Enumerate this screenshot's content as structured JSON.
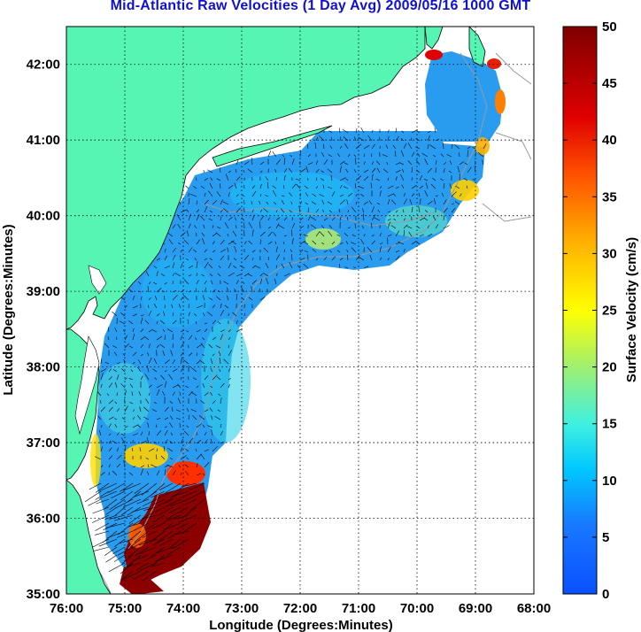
{
  "title": "Mid-Atlantic Raw Velocities (1 Day Avg) 2009/05/16 1000 GMT",
  "x_axis": {
    "label": "Longitude (Degrees:Minutes)",
    "ticks": [
      "76:00",
      "75:00",
      "74:00",
      "73:00",
      "72:00",
      "71:00",
      "70:00",
      "69:00",
      "68:00"
    ]
  },
  "y_axis": {
    "label": "Latitude (Degrees:Minutes)",
    "ticks": [
      "35:00",
      "36:00",
      "37:00",
      "38:00",
      "39:00",
      "40:00",
      "41:00",
      "42:00"
    ]
  },
  "colorbar": {
    "label": "Surface Velocity (cm/s)",
    "ticks": [
      "0",
      "5",
      "10",
      "15",
      "20",
      "25",
      "30",
      "35",
      "40",
      "45",
      "50"
    ],
    "min": 0,
    "max": 50
  },
  "map_extent": {
    "lon_min": -76,
    "lon_max": -68,
    "lat_min": 35,
    "lat_max": 42.5
  },
  "colors": {
    "land": "#57f5b4",
    "ocean_low": "#2a8cf0",
    "ocean_mid": "#1ec8f0",
    "ocean_high": "#800000",
    "title": "#1010d0",
    "grid": "#000000",
    "coast": "#000000",
    "bathymetry": "#9a9a9a"
  },
  "features": [
    "land-mask",
    "coverage-field",
    "bathymetry-contours",
    "velocity-vectors",
    "grid-lines",
    "colorbar"
  ]
}
